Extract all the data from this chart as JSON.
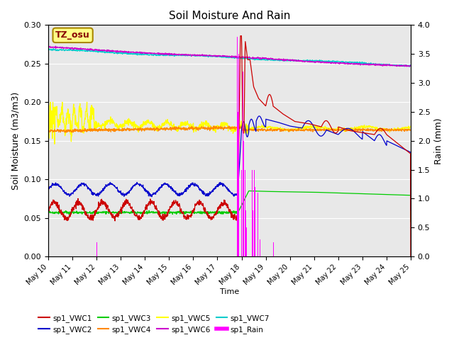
{
  "title": "Soil Moisture And Rain",
  "xlabel": "Time",
  "ylabel_left": "Soil Moisture (m3/m3)",
  "ylabel_right": "Rain (mm)",
  "ylim_left": [
    0.0,
    0.3
  ],
  "ylim_right": [
    0.0,
    4.0
  ],
  "station_label": "TZ_osu",
  "colors": {
    "VWC1": "#cc0000",
    "VWC2": "#0000cc",
    "VWC3": "#00cc00",
    "VWC4": "#ff8800",
    "VWC5": "#ffff00",
    "VWC6": "#cc00cc",
    "VWC7": "#00cccc",
    "Rain": "#ff00ff"
  },
  "xtick_labels": [
    "May 10",
    "May 11",
    "May 12",
    "May 13",
    "May 14",
    "May 15",
    "May 16",
    "May 17",
    "May 18",
    "May 19",
    "May 20",
    "May 21",
    "May 22",
    "May 23",
    "May 24",
    "May 25"
  ],
  "yticks_left": [
    0.0,
    0.05,
    0.1,
    0.15,
    0.2,
    0.25,
    0.3
  ],
  "yticks_right": [
    0.0,
    0.5,
    1.0,
    1.5,
    2.0,
    2.5,
    3.0,
    3.5,
    4.0
  ]
}
